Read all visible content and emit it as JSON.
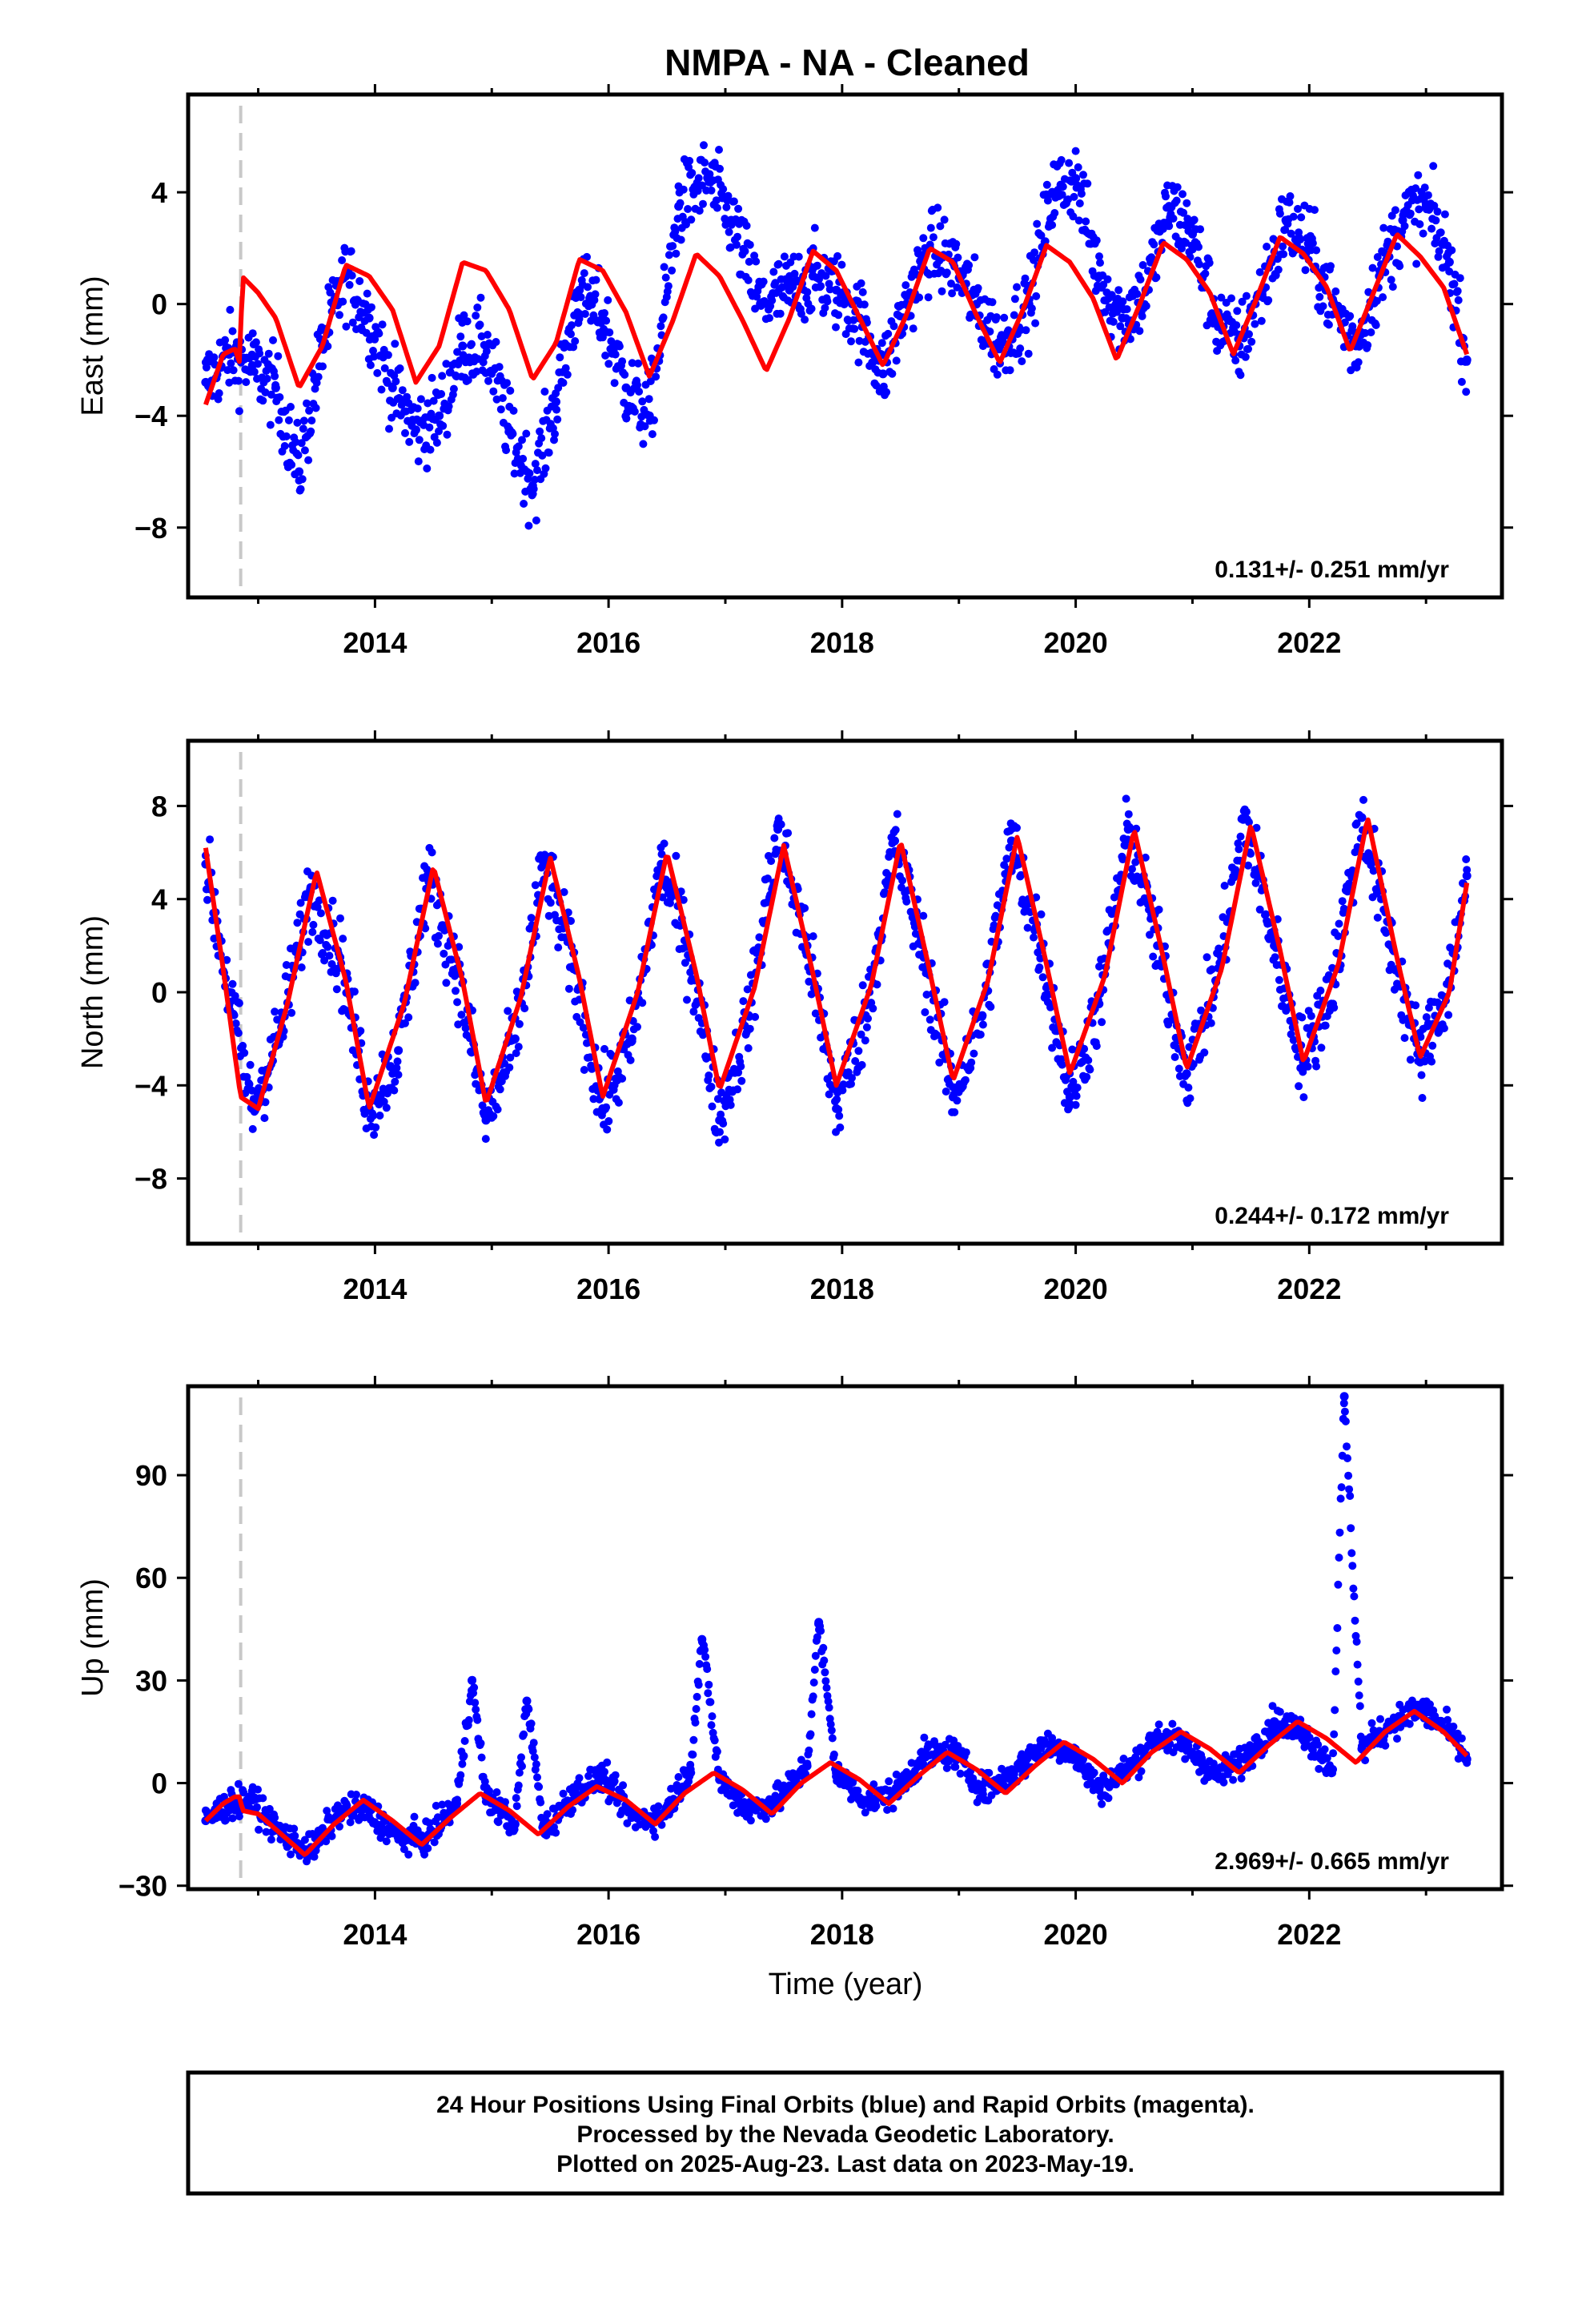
{
  "title": "NMPA  - NA - Cleaned",
  "colors": {
    "final_orbits": "#0000ff",
    "model_fit": "#ff0000",
    "offset_marker": "#c8c8c8"
  },
  "xaxis": {
    "label": "Time (year)",
    "range": [
      2012.4,
      2023.65
    ],
    "ticks": [
      "2014",
      "2016",
      "2018",
      "2020",
      "2022"
    ]
  },
  "offset_marker_year": 2012.85,
  "caption": [
    "24 Hour Positions Using Final Orbits (blue) and Rapid Orbits (magenta).",
    "Processed by the Nevada Geodetic Laboratory.",
    "Plotted on 2025-Aug-23. Last data on 2023-May-19."
  ],
  "chart_data": [
    {
      "type": "scatter",
      "component": "East",
      "ylabel": "East (mm)",
      "ylim": [
        -10.5,
        7.5
      ],
      "yticks": [
        "4",
        "0",
        "-4",
        "-8"
      ],
      "rate_text": "0.131+/- 0.251 mm/yr",
      "series": [
        {
          "name": "Final Orbits",
          "kind": "points",
          "color": "blue",
          "x": [
            2012.55,
            2012.75,
            2012.95,
            2013.15,
            2013.35,
            2013.55,
            2013.75,
            2013.95,
            2014.15,
            2014.35,
            2014.55,
            2014.75,
            2014.95,
            2015.15,
            2015.35,
            2015.55,
            2015.75,
            2015.95,
            2016.15,
            2016.35,
            2016.6,
            2016.85,
            2017.05,
            2017.3,
            2017.55,
            2017.75,
            2017.95,
            2018.15,
            2018.35,
            2018.55,
            2018.75,
            2018.95,
            2019.15,
            2019.35,
            2019.6,
            2019.8,
            2020.0,
            2020.2,
            2020.4,
            2020.6,
            2020.8,
            2021.0,
            2021.2,
            2021.4,
            2021.6,
            2021.8,
            2022.0,
            2022.2,
            2022.4,
            2022.6,
            2022.8,
            2023.0,
            2023.2,
            2023.35
          ],
          "y": [
            -2.8,
            -1.8,
            -2.2,
            -3.0,
            -6.0,
            -1.5,
            1.0,
            -0.5,
            -3.0,
            -4.5,
            -4.0,
            -1.5,
            -1.5,
            -4.5,
            -6.5,
            -3.5,
            0.5,
            -0.5,
            -3.0,
            -4.0,
            3.5,
            4.5,
            3.0,
            0.0,
            0.5,
            1.0,
            0.5,
            -0.5,
            -2.5,
            0.0,
            2.0,
            1.5,
            0.0,
            -1.5,
            0.0,
            4.0,
            4.5,
            1.0,
            -0.5,
            0.5,
            3.5,
            2.5,
            -0.5,
            -1.5,
            0.5,
            3.0,
            2.0,
            0.0,
            -1.5,
            1.0,
            3.0,
            3.5,
            1.5,
            -2.0
          ]
        },
        {
          "name": "Model fit",
          "kind": "line",
          "color": "red",
          "x": [
            2012.55,
            2012.7,
            2012.8,
            2012.85,
            2012.86,
            2013.0,
            2013.15,
            2013.35,
            2013.55,
            2013.75,
            2013.95,
            2014.15,
            2014.35,
            2014.55,
            2014.75,
            2014.95,
            2015.15,
            2015.35,
            2015.55,
            2015.75,
            2015.95,
            2016.15,
            2016.35,
            2016.55,
            2016.75,
            2016.95,
            2017.15,
            2017.35,
            2017.55,
            2017.75,
            2017.95,
            2018.15,
            2018.35,
            2018.55,
            2018.75,
            2018.95,
            2019.15,
            2019.35,
            2019.55,
            2019.75,
            2019.95,
            2020.15,
            2020.35,
            2020.55,
            2020.75,
            2020.95,
            2021.15,
            2021.35,
            2021.55,
            2021.75,
            2021.95,
            2022.15,
            2022.35,
            2022.55,
            2022.75,
            2022.95,
            2023.15,
            2023.35
          ],
          "y": [
            -3.6,
            -1.8,
            -1.6,
            -2.2,
            1.0,
            0.4,
            -0.5,
            -3.0,
            -1.5,
            1.4,
            1.0,
            -0.2,
            -2.8,
            -1.5,
            1.5,
            1.2,
            -0.2,
            -2.7,
            -1.4,
            1.6,
            1.2,
            -0.3,
            -2.6,
            -0.6,
            1.8,
            1.0,
            -0.6,
            -2.4,
            -0.5,
            1.9,
            1.2,
            -0.5,
            -2.2,
            -0.4,
            2.0,
            1.5,
            -0.4,
            -2.1,
            -0.2,
            2.1,
            1.5,
            0.2,
            -2.0,
            0.0,
            2.2,
            1.6,
            0.4,
            -1.8,
            0.2,
            2.4,
            1.8,
            0.6,
            -1.7,
            0.4,
            2.5,
            1.7,
            0.6,
            -1.8
          ]
        }
      ]
    },
    {
      "type": "scatter",
      "component": "North",
      "ylabel": "North (mm)",
      "ylim": [
        -10.8,
        10.8
      ],
      "yticks": [
        "8",
        "4",
        "0",
        "-4",
        "-8"
      ],
      "rate_text": "0.244+/- 0.172 mm/yr",
      "series": [
        {
          "name": "Final Orbits",
          "kind": "points",
          "color": "blue",
          "x": [
            2012.55,
            2012.75,
            2012.95,
            2013.2,
            2013.45,
            2013.7,
            2013.95,
            2014.2,
            2014.45,
            2014.7,
            2014.95,
            2015.2,
            2015.45,
            2015.7,
            2015.95,
            2016.2,
            2016.45,
            2016.7,
            2016.95,
            2017.2,
            2017.45,
            2017.7,
            2017.95,
            2018.2,
            2018.45,
            2018.7,
            2018.95,
            2019.2,
            2019.45,
            2019.7,
            2019.95,
            2020.2,
            2020.45,
            2020.7,
            2020.95,
            2021.2,
            2021.45,
            2021.7,
            2021.95,
            2022.2,
            2022.45,
            2022.7,
            2022.95,
            2023.2,
            2023.35
          ],
          "y": [
            5.5,
            0.0,
            -5.0,
            -1.5,
            4.5,
            1.5,
            -5.0,
            -2.5,
            5.0,
            1.0,
            -5.5,
            -2.0,
            5.5,
            1.0,
            -5.0,
            -2.0,
            5.5,
            1.5,
            -5.5,
            -1.0,
            7.0,
            2.0,
            -5.0,
            -1.0,
            6.5,
            1.5,
            -4.5,
            -1.0,
            6.5,
            2.0,
            -4.5,
            -0.5,
            7.0,
            2.0,
            -3.5,
            0.5,
            7.5,
            2.0,
            -3.0,
            0.5,
            7.5,
            2.0,
            -3.0,
            0.5,
            5.0
          ]
        },
        {
          "name": "Model fit",
          "kind": "line",
          "color": "red",
          "x": [
            2012.55,
            2012.7,
            2012.85,
            2013.0,
            2013.25,
            2013.5,
            2013.75,
            2013.95,
            2014.25,
            2014.5,
            2014.75,
            2014.95,
            2015.25,
            2015.5,
            2015.75,
            2015.95,
            2016.25,
            2016.5,
            2016.75,
            2016.95,
            2017.25,
            2017.5,
            2017.75,
            2017.95,
            2018.25,
            2018.5,
            2018.75,
            2018.95,
            2019.25,
            2019.5,
            2019.75,
            2019.95,
            2020.25,
            2020.5,
            2020.75,
            2020.95,
            2021.25,
            2021.5,
            2021.75,
            2021.95,
            2022.25,
            2022.5,
            2022.75,
            2022.95,
            2023.2,
            2023.35
          ],
          "y": [
            6.2,
            1.0,
            -4.5,
            -5.0,
            -0.5,
            5.2,
            0.5,
            -5.0,
            -0.5,
            5.4,
            0.5,
            -4.8,
            -0.2,
            5.8,
            0.6,
            -4.5,
            0.0,
            6.0,
            0.8,
            -4.2,
            0.2,
            6.3,
            0.8,
            -4.0,
            0.3,
            6.5,
            0.9,
            -3.8,
            0.5,
            6.7,
            1.2,
            -3.5,
            0.7,
            7.0,
            1.5,
            -3.3,
            1.0,
            7.2,
            1.8,
            -3.0,
            1.2,
            7.5,
            1.5,
            -2.8,
            0.0,
            4.7
          ]
        }
      ]
    },
    {
      "type": "scatter",
      "component": "Up",
      "ylabel": "Up (mm)",
      "ylim": [
        -31,
        116
      ],
      "yticks": [
        "90",
        "60",
        "30",
        "0",
        "-30"
      ],
      "rate_text": "2.969+/- 0.665 mm/yr",
      "series": [
        {
          "name": "Final Orbits",
          "kind": "points",
          "color": "blue",
          "x": [
            2012.55,
            2012.75,
            2012.95,
            2013.2,
            2013.45,
            2013.7,
            2013.95,
            2014.2,
            2014.45,
            2014.7,
            2014.83,
            2014.95,
            2015.2,
            2015.3,
            2015.45,
            2015.7,
            2015.95,
            2016.2,
            2016.45,
            2016.7,
            2016.8,
            2016.95,
            2017.2,
            2017.45,
            2017.7,
            2017.8,
            2017.95,
            2018.2,
            2018.45,
            2018.7,
            2018.95,
            2019.2,
            2019.45,
            2019.7,
            2019.95,
            2020.2,
            2020.45,
            2020.7,
            2020.95,
            2021.2,
            2021.45,
            2021.7,
            2021.95,
            2022.2,
            2022.3,
            2022.45,
            2022.7,
            2022.95,
            2023.2,
            2023.35
          ],
          "y": [
            -11,
            -6,
            -5,
            -15,
            -20,
            -8,
            -8,
            -16,
            -16,
            -6,
            30,
            -4,
            -12,
            24,
            -14,
            -3,
            2,
            -10,
            -10,
            4,
            42,
            1,
            -8,
            -5,
            5,
            47,
            3,
            -5,
            -3,
            8,
            9,
            -2,
            2,
            11,
            10,
            -2,
            4,
            14,
            11,
            2,
            7,
            18,
            15,
            4,
            113,
            10,
            17,
            22,
            15,
            7
          ]
        },
        {
          "name": "Model fit",
          "kind": "line",
          "color": "red",
          "x": [
            2012.55,
            2012.7,
            2012.8,
            2012.85,
            2012.86,
            2013.0,
            2013.2,
            2013.4,
            2013.65,
            2013.9,
            2014.15,
            2014.4,
            2014.65,
            2014.9,
            2015.15,
            2015.4,
            2015.65,
            2015.9,
            2016.15,
            2016.4,
            2016.65,
            2016.9,
            2017.15,
            2017.4,
            2017.65,
            2017.9,
            2018.15,
            2018.4,
            2018.65,
            2018.9,
            2019.15,
            2019.4,
            2019.65,
            2019.9,
            2020.15,
            2020.4,
            2020.65,
            2020.9,
            2021.15,
            2021.4,
            2021.65,
            2021.9,
            2022.15,
            2022.4,
            2022.65,
            2022.9,
            2023.15,
            2023.35
          ],
          "y": [
            -11,
            -6,
            -4,
            -4,
            -8,
            -9,
            -15,
            -21,
            -12,
            -5,
            -11,
            -18,
            -10,
            -3,
            -8,
            -15,
            -7,
            -1,
            -5,
            -12,
            -3,
            3,
            -2,
            -9,
            0,
            6,
            1,
            -6,
            2,
            9,
            4,
            -3,
            5,
            12,
            7,
            0,
            9,
            15,
            10,
            3,
            11,
            18,
            13,
            6,
            15,
            21,
            15,
            8
          ]
        }
      ]
    }
  ]
}
